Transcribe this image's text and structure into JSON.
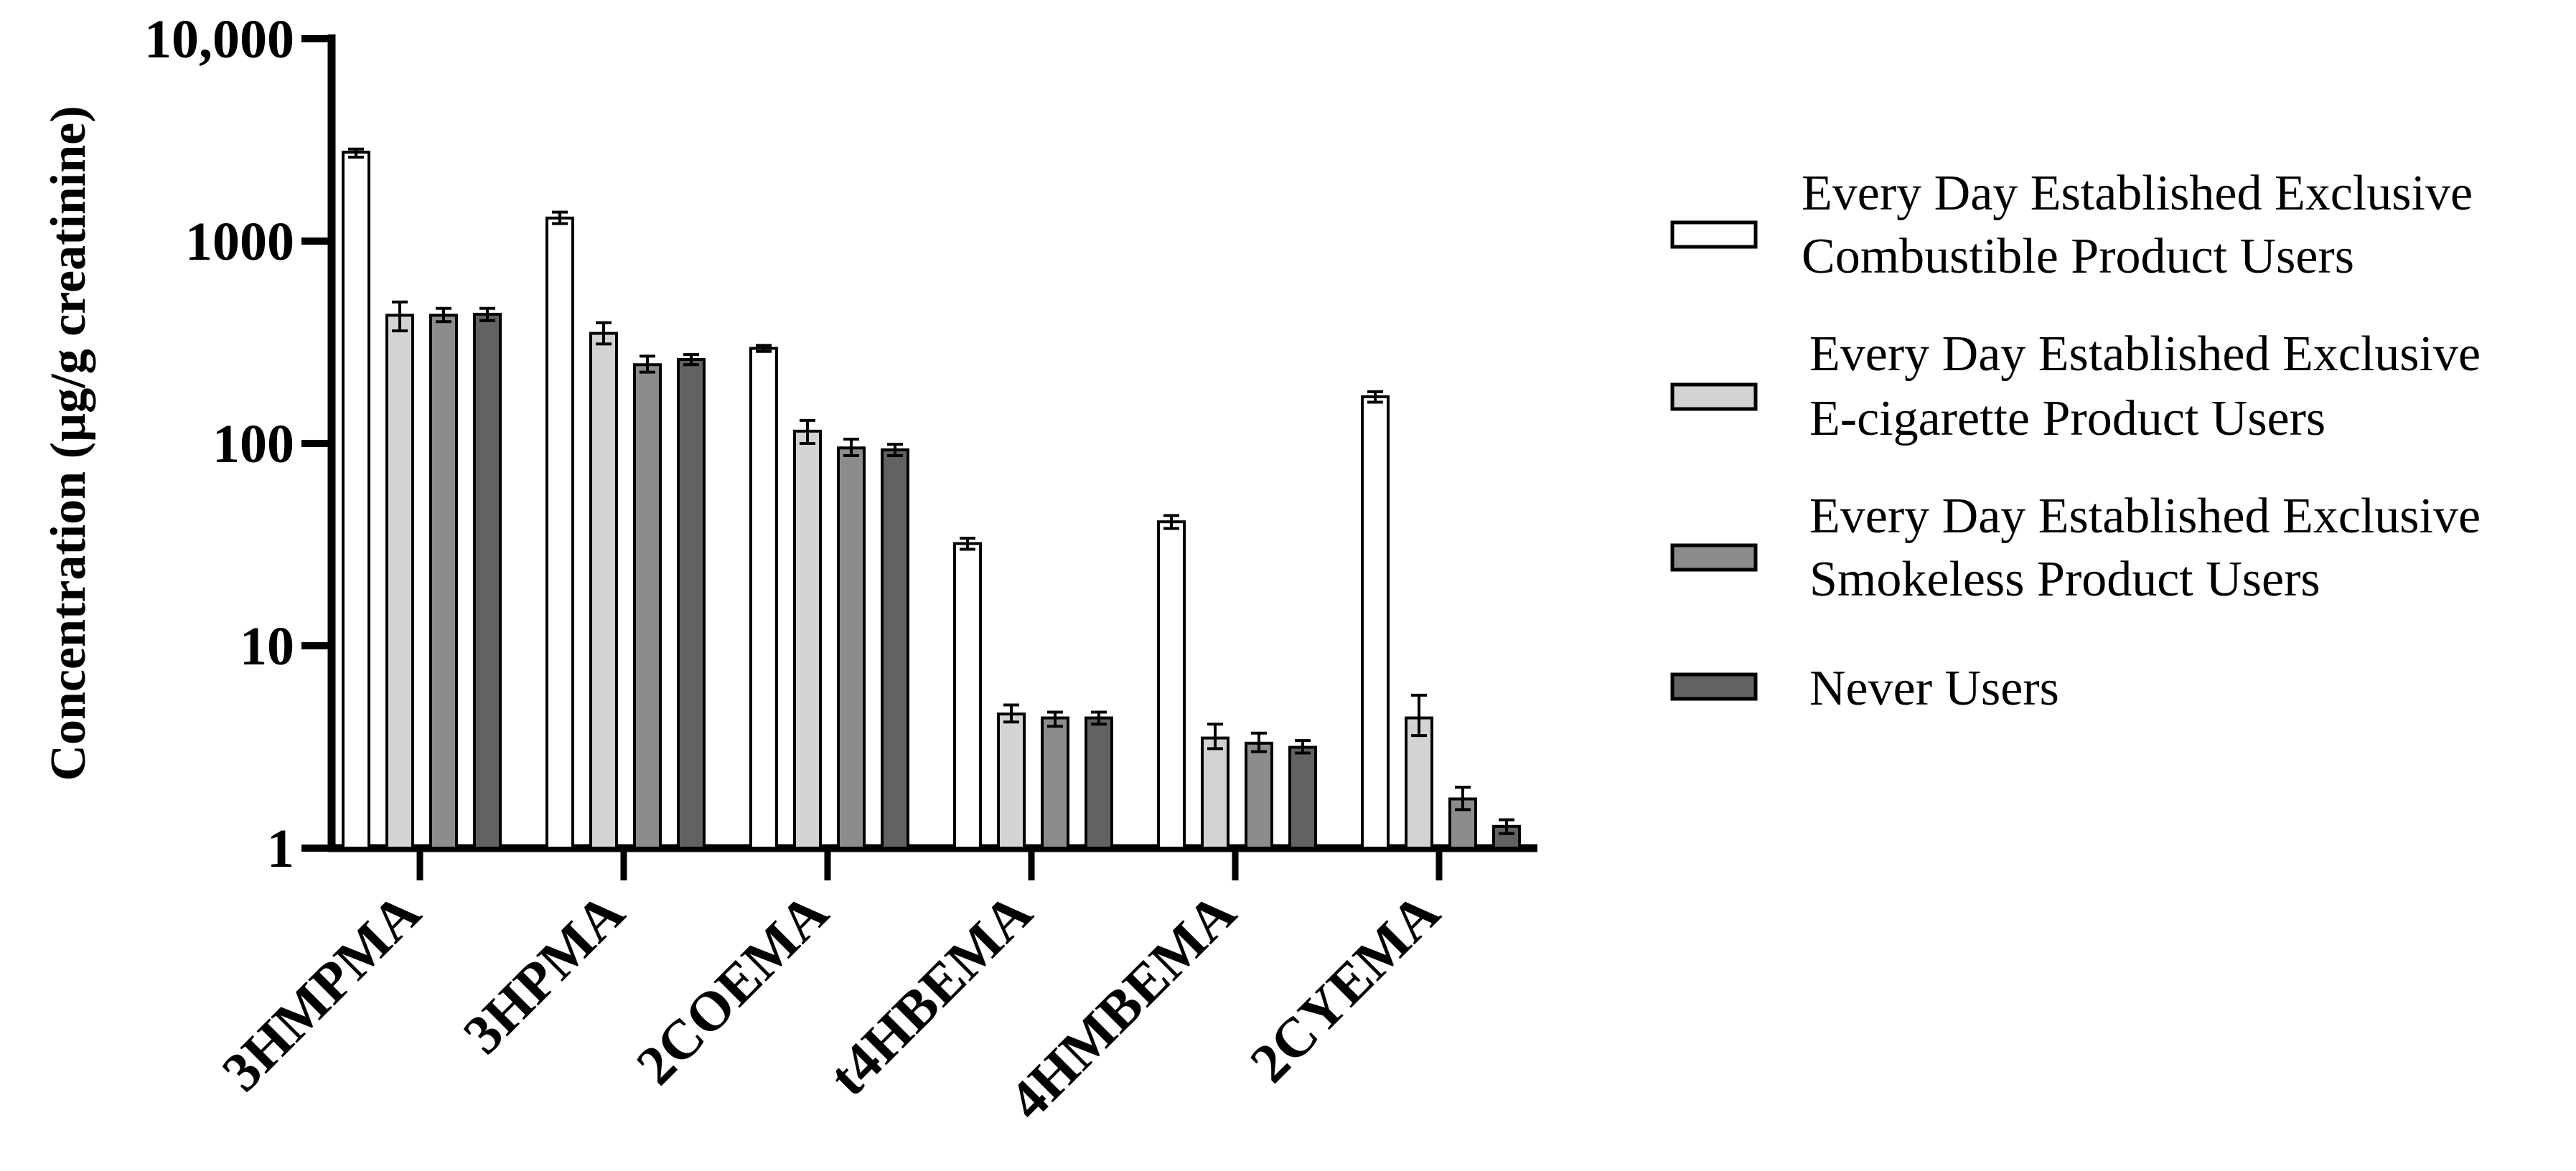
{
  "chart_data": {
    "type": "bar",
    "ylabel": "Concentration (µg/g creatinine)",
    "yscale": "log",
    "ylim": [
      1,
      10000
    ],
    "yticks": [
      {
        "value": 1,
        "label": "1"
      },
      {
        "value": 10,
        "label": "10"
      },
      {
        "value": 100,
        "label": "100"
      },
      {
        "value": 1000,
        "label": "1000"
      },
      {
        "value": 10000,
        "label": "10,000"
      }
    ],
    "categories": [
      "3HMPMA",
      "3HPMA",
      "2COEMA",
      "t4HBEMA",
      "4HMBEMA",
      "2CYEMA"
    ],
    "series": [
      {
        "name_lines": [
          "Every Day Established Exclusive",
          "Combustible Product Users"
        ],
        "color": "#ffffff",
        "values": [
          2750,
          1300,
          295,
          32,
          41,
          170
        ],
        "errors": [
          [
            2600,
            2850
          ],
          [
            1220,
            1390
          ],
          [
            285,
            305
          ],
          [
            30,
            34
          ],
          [
            38,
            44
          ],
          [
            160,
            180
          ]
        ]
      },
      {
        "name_lines": [
          "Every Day Established Exclusive",
          "E-cigarette Product Users"
        ],
        "color": "#d3d3d3",
        "values": [
          430,
          350,
          115,
          4.6,
          3.5,
          4.4
        ],
        "errors": [
          [
            360,
            500
          ],
          [
            310,
            395
          ],
          [
            100,
            130
          ],
          [
            4.2,
            5.1
          ],
          [
            3.1,
            4.1
          ],
          [
            3.6,
            5.7
          ]
        ]
      },
      {
        "name_lines": [
          "Every Day Established Exclusive",
          "Smokeless Product Users"
        ],
        "color": "#8c8c8c",
        "values": [
          430,
          245,
          95,
          4.4,
          3.3,
          1.75
        ],
        "errors": [
          [
            400,
            465
          ],
          [
            225,
            270
          ],
          [
            87,
            105
          ],
          [
            4.0,
            4.7
          ],
          [
            3.0,
            3.7
          ],
          [
            1.55,
            2.0
          ]
        ]
      },
      {
        "name_lines": [
          "Never Users"
        ],
        "color": "#626262",
        "values": [
          435,
          260,
          93,
          4.4,
          3.15,
          1.28
        ],
        "errors": [
          [
            405,
            465
          ],
          [
            245,
            275
          ],
          [
            87,
            99
          ],
          [
            4.1,
            4.7
          ],
          [
            2.95,
            3.4
          ],
          [
            1.18,
            1.38
          ]
        ]
      }
    ],
    "grid": false,
    "legend_position": "right"
  }
}
